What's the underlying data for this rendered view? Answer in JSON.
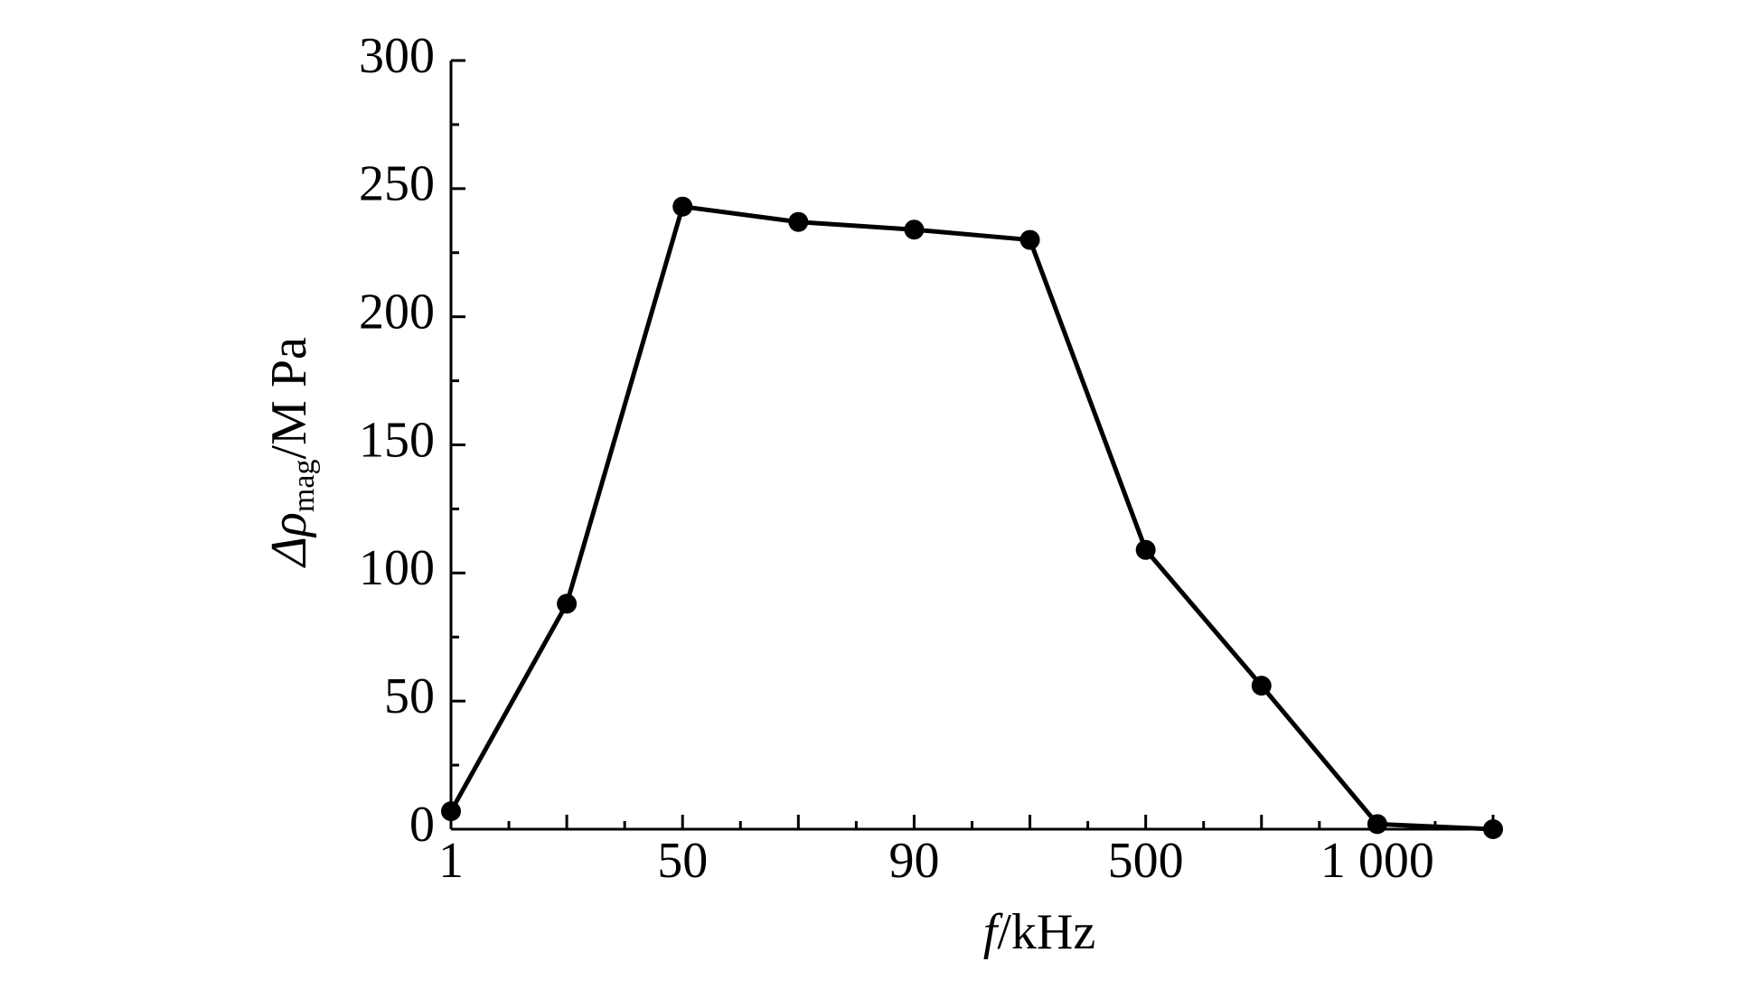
{
  "chart_data": {
    "type": "line",
    "y_label": {
      "main": "Δρ",
      "sub": "mag",
      "unit": "/M Pa"
    },
    "x_label": {
      "symbol": "f",
      "unit": "/kHz"
    },
    "categories": [
      "1",
      null,
      "50",
      null,
      "90",
      null,
      "500",
      null,
      "1 000",
      null
    ],
    "values": [
      7,
      88,
      243,
      237,
      234,
      230,
      109,
      56,
      2,
      0
    ],
    "color": "#000000",
    "ylim": [
      0,
      300
    ],
    "yticks": [
      0,
      50,
      100,
      150,
      200,
      250,
      300
    ],
    "grid": false
  }
}
